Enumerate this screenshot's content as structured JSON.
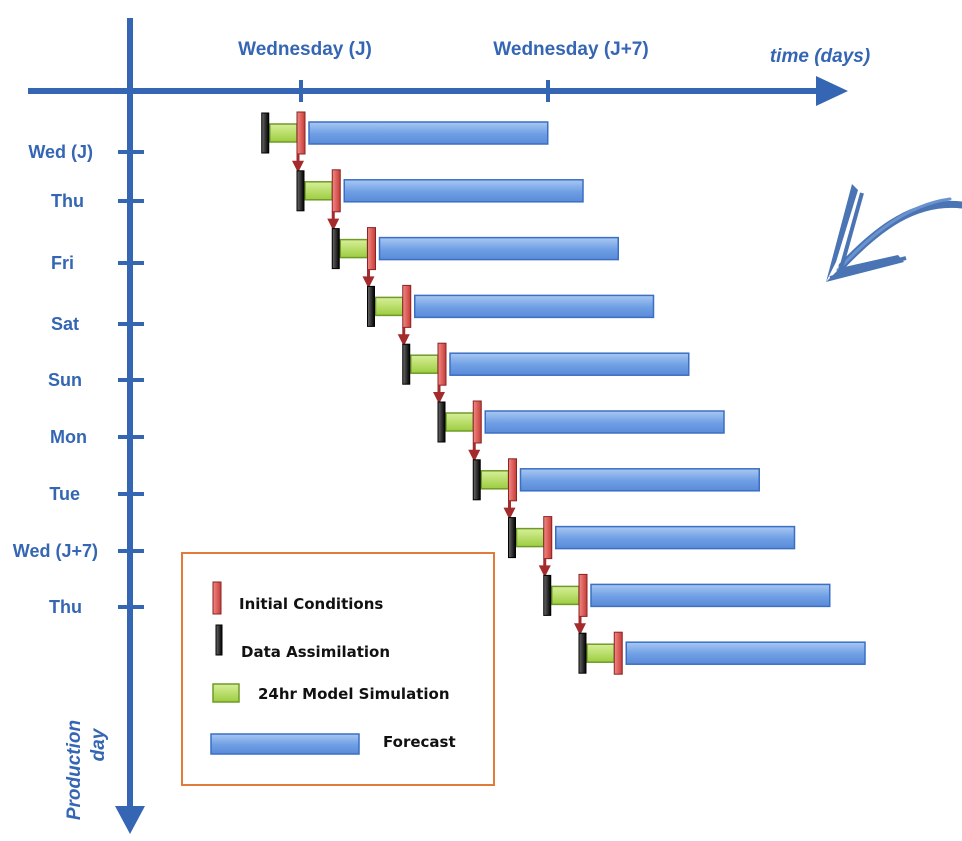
{
  "x_axis": {
    "label": "time (days)",
    "ticks": [
      "Wednesday (J)",
      "Wednesday (J+7)"
    ]
  },
  "y_axis": {
    "label_line1": "Production",
    "label_line2": "day",
    "ticks": [
      "Wed (J)",
      "Thu",
      "Fri",
      "Sat",
      "Sun",
      "Mon",
      "Tue",
      "Wed (J+7)",
      "Thu"
    ]
  },
  "legend": {
    "initial_conditions": "Initial Conditions",
    "data_assimilation": "Data Assimilation",
    "model_simulation": "24hr Model Simulation",
    "forecast": "Forecast"
  },
  "chart_data": {
    "type": "gantt",
    "x_unit": "days",
    "rows": [
      {
        "production_day": "Wed (J)",
        "data_assimilation_day": -1,
        "model_simulation_days": [
          -1,
          0
        ],
        "initial_conditions_day": 0,
        "forecast_days": [
          0,
          7
        ]
      },
      {
        "production_day": "Thu",
        "data_assimilation_day": 0,
        "model_simulation_days": [
          0,
          1
        ],
        "initial_conditions_day": 1,
        "forecast_days": [
          1,
          8
        ]
      },
      {
        "production_day": "Fri",
        "data_assimilation_day": 1,
        "model_simulation_days": [
          1,
          2
        ],
        "initial_conditions_day": 2,
        "forecast_days": [
          2,
          9
        ]
      },
      {
        "production_day": "Sat",
        "data_assimilation_day": 2,
        "model_simulation_days": [
          2,
          3
        ],
        "initial_conditions_day": 3,
        "forecast_days": [
          3,
          10
        ]
      },
      {
        "production_day": "Sun",
        "data_assimilation_day": 3,
        "model_simulation_days": [
          3,
          4
        ],
        "initial_conditions_day": 4,
        "forecast_days": [
          4,
          11
        ]
      },
      {
        "production_day": "Mon",
        "data_assimilation_day": 4,
        "model_simulation_days": [
          4,
          5
        ],
        "initial_conditions_day": 5,
        "forecast_days": [
          5,
          12
        ]
      },
      {
        "production_day": "Tue",
        "data_assimilation_day": 5,
        "model_simulation_days": [
          5,
          6
        ],
        "initial_conditions_day": 6,
        "forecast_days": [
          6,
          13
        ]
      },
      {
        "production_day": "Wed (J+7)",
        "data_assimilation_day": 6,
        "model_simulation_days": [
          6,
          7
        ],
        "initial_conditions_day": 7,
        "forecast_days": [
          7,
          14
        ]
      },
      {
        "production_day": "Thu",
        "data_assimilation_day": 7,
        "model_simulation_days": [
          7,
          8
        ],
        "initial_conditions_day": 8,
        "forecast_days": [
          8,
          15
        ]
      },
      {
        "production_day": "",
        "data_assimilation_day": 8,
        "model_simulation_days": [
          8,
          9
        ],
        "initial_conditions_day": 9,
        "forecast_days": [
          9,
          16
        ]
      }
    ],
    "colors": {
      "axis": "#3566b3",
      "forecast_fill": "#6e9ee4",
      "forecast_stroke": "#3a6fc4",
      "simulation_fill": "#a8d54a",
      "simulation_stroke": "#6f9a2a",
      "initial_conditions_fill": "#d9534f",
      "data_assimilation_fill": "#1a1a1a",
      "connector_arrow": "#a32b2b",
      "legend_border": "#e07b39"
    }
  }
}
